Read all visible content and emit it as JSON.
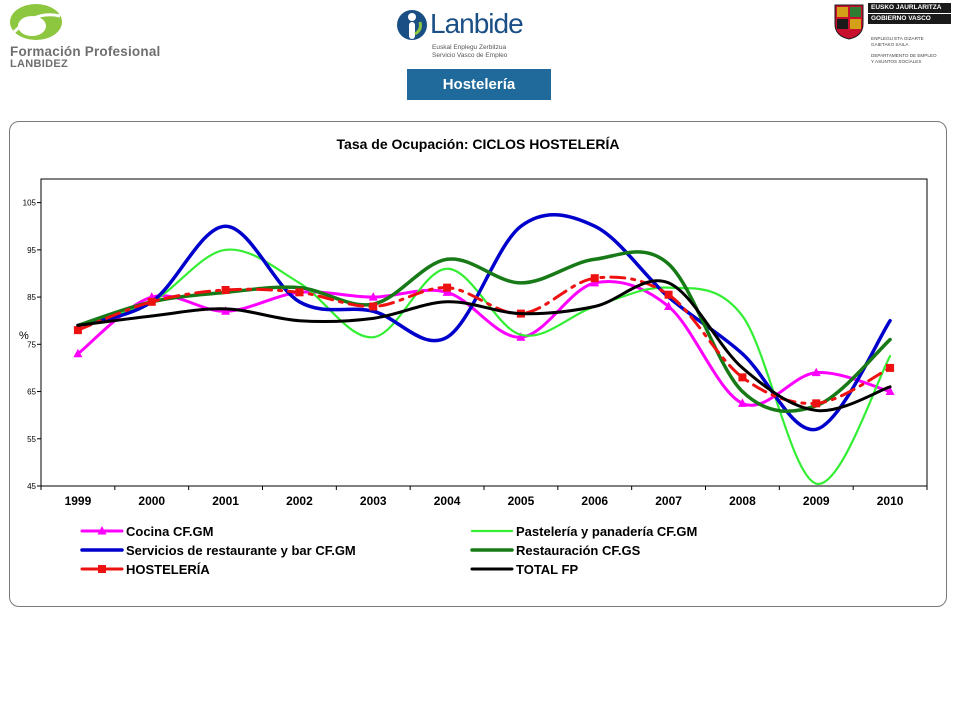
{
  "header": {
    "left_logo": {
      "line1": "Formación Profesional",
      "line2": "LANBIDEZ"
    },
    "center_logo": {
      "word": "Lanbide",
      "line1": "Euskal Enplegu Zerbitzua",
      "line2": "Servicio Vasco de Empleo"
    },
    "right_logo": {
      "box1": "EUSKO JAURLARITZA",
      "box2": "GOBIERNO VASCO",
      "lines": [
        "ENPLEGU ETA GIZARTE",
        "GAIETAKO SAILA",
        "DEPARTAMENTO DE EMPLEO",
        "Y ASUNTOS SOCIALES"
      ]
    },
    "section_tab": "Hostelería"
  },
  "colors": {
    "tab_bg": "#1f6a9a",
    "logo_green": "#8dc63f",
    "logo_blue": "#1a4f86"
  },
  "chart_data": {
    "type": "line",
    "title": "Tasa de Ocupación:  CICLOS HOSTELERÍA",
    "xlabel": "",
    "ylabel": "%",
    "categories": [
      "1999",
      "2000",
      "2001",
      "2002",
      "2003",
      "2004",
      "2005",
      "2006",
      "2007",
      "2008",
      "2009",
      "2010"
    ],
    "ylim": [
      45,
      110
    ],
    "yticks": [
      45,
      55,
      65,
      75,
      85,
      95,
      105
    ],
    "grid": false,
    "legend_position": "bottom",
    "smooth": true,
    "series": [
      {
        "name": "Cocina CF.GM",
        "color": "#ff00ff",
        "width": 3,
        "marker": "triangle",
        "values": [
          73,
          85,
          82,
          86,
          85,
          86,
          76.5,
          88,
          83,
          62.5,
          69,
          65
        ]
      },
      {
        "name": "Pastelería y panadería CF.GM",
        "color": "#33ee33",
        "width": 2.2,
        "marker": "none",
        "values": [
          79,
          84,
          95,
          88,
          76.5,
          91,
          77,
          83,
          87,
          81,
          45.5,
          72.5
        ]
      },
      {
        "name": "Servicios de restaurante y bar CF.GM",
        "color": "#0000cc",
        "width": 3.5,
        "marker": "none",
        "values": [
          79,
          84,
          100,
          84,
          82,
          76.5,
          100,
          100,
          85,
          73,
          57,
          80
        ]
      },
      {
        "name": "Restauración CF.GS",
        "color": "#177a17",
        "width": 3.5,
        "marker": "none",
        "values": [
          79,
          84,
          86,
          87,
          83.5,
          93,
          88,
          93,
          92,
          65,
          62,
          76
        ]
      },
      {
        "name": "HOSTELERÍA",
        "color": "#ee1111",
        "width": 3,
        "marker": "square",
        "values": [
          78,
          84,
          86.5,
          86,
          83,
          87,
          81.5,
          89,
          85.5,
          68,
          62.5,
          70
        ]
      },
      {
        "name": "TOTAL FP",
        "color": "#000000",
        "width": 3,
        "marker": "none",
        "values": [
          79,
          81,
          82.5,
          80,
          80.5,
          84,
          81.5,
          83,
          88,
          70,
          61,
          66
        ]
      }
    ]
  }
}
